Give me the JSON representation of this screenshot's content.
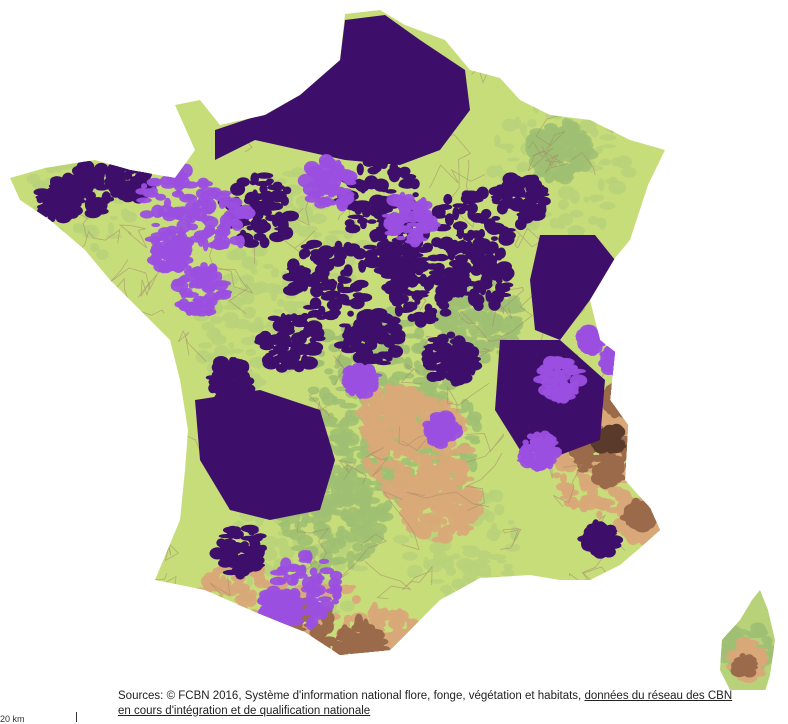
{
  "map": {
    "colors": {
      "sea": "#ffffff",
      "lowland": "#c7dd7a",
      "plain": "#b8d27a",
      "hills": "#9fbf72",
      "mid_mountain": "#d9a878",
      "high_mountain": "#9a6a4a",
      "peak": "#5a3a2a",
      "dept_border": "#a28a6a",
      "presence_dense": "#3d0f6b",
      "presence_light": "#9b4fe0"
    },
    "icons": {
      "region_layer": "terrain-relief-icon",
      "presence_layer": "species-presence-icon"
    }
  },
  "sources": {
    "prefix": "Sources: © FCBN 2016, Système d'information national flore, fonge, végétation et habitats, ",
    "link": "données du réseau des CBN en cours d'intégration et de qualification nationale"
  },
  "scale": {
    "label": "20 km"
  }
}
